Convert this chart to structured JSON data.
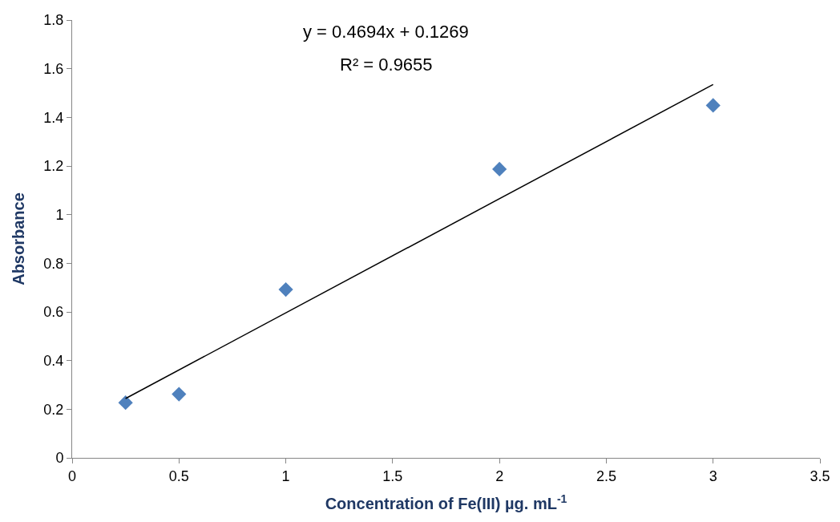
{
  "chart_data": {
    "type": "scatter",
    "xlabel": "Concentration of Fe(III) µg. mL$^{-1}$",
    "ylabel": "Absorbance",
    "annotations": [
      "y = 0.4694x + 0.1269",
      "R² = 0.9655"
    ],
    "x": [
      0.25,
      0.5,
      1,
      2,
      3
    ],
    "series": [
      {
        "color": "#4f81bd",
        "marker": "diamond",
        "values": [
          0.227,
          0.262,
          0.692,
          1.187,
          1.449
        ]
      },
      {
        "type": "line",
        "color": "#000000",
        "marker": "none",
        "x": [
          0.25,
          3
        ],
        "values": [
          0.244,
          1.535
        ]
      }
    ],
    "xlim": [
      0,
      3.5
    ],
    "xticks": [
      0,
      0.5,
      1,
      1.5,
      2,
      2.5,
      3,
      3.5
    ],
    "ylim": [
      0,
      1.8
    ],
    "yticks": [
      0,
      0.2,
      0.4,
      0.6,
      0.8,
      1,
      1.2,
      1.4,
      1.6,
      1.8
    ]
  }
}
